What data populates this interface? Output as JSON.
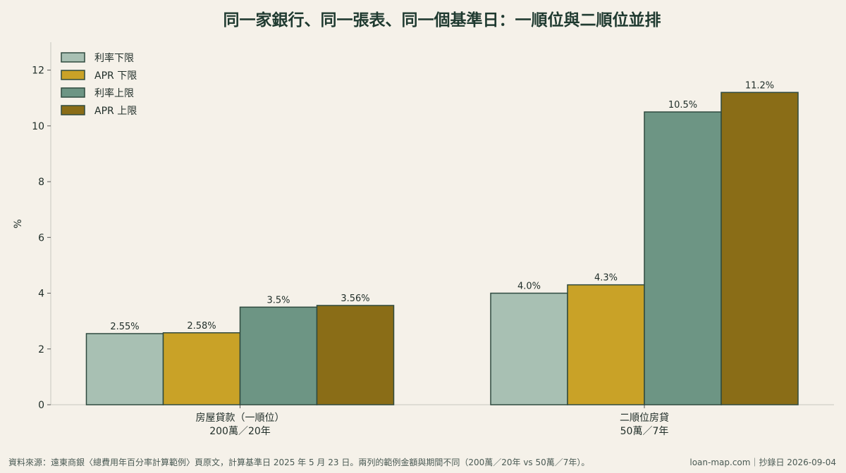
{
  "colors": {
    "background": "#f5f1e9",
    "bar_edge": "#2f4a3f",
    "axis": "#c8c8bf",
    "series": [
      "#a8c0b3",
      "#c9a227",
      "#6d9584",
      "#8a6d17"
    ]
  },
  "chart_data": {
    "type": "bar",
    "title": "同一家銀行、同一張表、同一個基準日：一順位與二順位並排",
    "ylabel": "%",
    "xlabel": "",
    "ylim": [
      0,
      13
    ],
    "yticks": [
      0,
      2,
      4,
      6,
      8,
      10,
      12
    ],
    "categories": [
      [
        "房屋貸款（一順位）",
        "200萬／20年"
      ],
      [
        "二順位房貸",
        "50萬／7年"
      ]
    ],
    "series": [
      {
        "name": "利率下限",
        "values": [
          2.55,
          4.0
        ],
        "labels": [
          "2.55%",
          "4.0%"
        ]
      },
      {
        "name": "APR 下限",
        "values": [
          2.58,
          4.3
        ],
        "labels": [
          "2.58%",
          "4.3%"
        ]
      },
      {
        "name": "利率上限",
        "values": [
          3.5,
          10.5
        ],
        "labels": [
          "3.5%",
          "10.5%"
        ]
      },
      {
        "name": "APR 上限",
        "values": [
          3.56,
          11.2
        ],
        "labels": [
          "3.56%",
          "11.2%"
        ]
      }
    ],
    "legend_position": "top-left",
    "grid": false
  },
  "footer": {
    "source": "資料來源：遠東商銀〈總費用年百分率計算範例〉頁原文，計算基準日 2025 年 5 月 23 日。兩列的範例金額與期間不同（200萬／20年 vs 50萬／7年）。",
    "site": "loan-map.com｜抄錄日 2026-09-04"
  }
}
